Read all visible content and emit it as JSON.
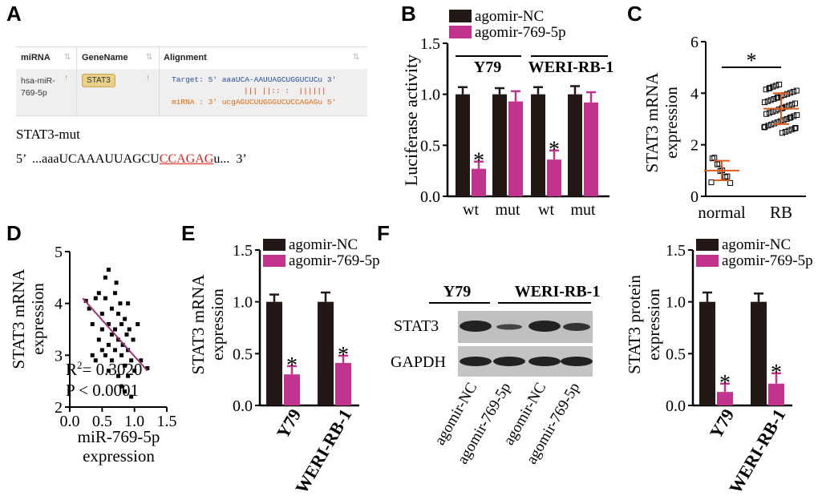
{
  "panels": {
    "a": "A",
    "b": "B",
    "c": "C",
    "d": "D",
    "e": "E",
    "f": "F"
  },
  "panel_a": {
    "headers": [
      "miRNA",
      "GeneName",
      "Alignment"
    ],
    "mirna_line1": "hsa-miR-",
    "mirna_line2": "769-5p",
    "gene": "STAT3",
    "target_line": "Target: 5' aaaUCA-AAUUAGCUGGUCUCu 3'",
    "pairing_line": "||| ||:: :  ||||||",
    "mirna_seq_line": "miRNA : 3' ucgAGUCUUGGGUCUCCAGAGu 5'",
    "mut_label": "STAT3-mut",
    "mut_prefix": "5’  ...aaaUCAAAUUAGCU",
    "mut_highlight": "CCAGAG",
    "mut_suffix": "u...  3’"
  },
  "colors": {
    "nc": "#231815",
    "ago": "#c2338e",
    "regression": "#a0307a",
    "orange": "#e05a1a"
  },
  "chart_data": [
    {
      "id": "B",
      "type": "bar",
      "ylabel": "Luciferase activity",
      "ylim": [
        0,
        1.5
      ],
      "yticks": [
        "0.0",
        "0.5",
        "1.0",
        "1.5"
      ],
      "groups": [
        "Y79",
        "WERI-RB-1"
      ],
      "categories": [
        "wt",
        "mut",
        "wt",
        "mut"
      ],
      "legend": [
        "agomir-NC",
        "agomir-769-5p"
      ],
      "series": [
        {
          "name": "agomir-NC",
          "values": [
            1.0,
            1.0,
            1.0,
            1.0
          ],
          "errors": [
            0.07,
            0.06,
            0.07,
            0.08
          ]
        },
        {
          "name": "agomir-769-5p",
          "values": [
            0.27,
            0.93,
            0.36,
            0.92
          ],
          "errors": [
            0.07,
            0.1,
            0.09,
            0.1
          ]
        }
      ],
      "annotations": [
        "*",
        "*"
      ]
    },
    {
      "id": "C",
      "type": "scatter",
      "ylabel_lines": [
        "STAT3 mRNA",
        "expression"
      ],
      "ylim": [
        0,
        6
      ],
      "yticks": [
        "0",
        "2",
        "4",
        "6"
      ],
      "categories": [
        "normal",
        "RB"
      ],
      "means": [
        1.0,
        3.4
      ],
      "sd": [
        0.38,
        0.6
      ],
      "annotation": "*"
    },
    {
      "id": "D",
      "type": "scatter",
      "ylabel_lines": [
        "STAT3 mRNA",
        "expression"
      ],
      "xlabel_lines": [
        "miR-769-5p",
        "expression"
      ],
      "xlim": [
        0.0,
        1.5
      ],
      "ylim": [
        2,
        5
      ],
      "xticks": [
        "0.0",
        "0.5",
        "1.0",
        "1.5"
      ],
      "yticks": [
        "2",
        "3",
        "4",
        "5"
      ],
      "r2_label": "R",
      "r2_value": "= 0.3020",
      "p_label": "P < 0.0001",
      "fit": {
        "x0": 0.2,
        "y0": 4.1,
        "x1": 1.2,
        "y1": 2.7
      },
      "points": [
        [
          0.25,
          4.05
        ],
        [
          0.3,
          3.9
        ],
        [
          0.35,
          3.6
        ],
        [
          0.4,
          4.1
        ],
        [
          0.45,
          3.3
        ],
        [
          0.45,
          4.2
        ],
        [
          0.5,
          3.1
        ],
        [
          0.5,
          3.8
        ],
        [
          0.55,
          4.5
        ],
        [
          0.55,
          3.0
        ],
        [
          0.55,
          4.1
        ],
        [
          0.6,
          3.6
        ],
        [
          0.6,
          3.2
        ],
        [
          0.6,
          4.65
        ],
        [
          0.65,
          3.9
        ],
        [
          0.65,
          3.4
        ],
        [
          0.65,
          2.9
        ],
        [
          0.7,
          4.2
        ],
        [
          0.7,
          3.5
        ],
        [
          0.7,
          3.1
        ],
        [
          0.72,
          4.4
        ],
        [
          0.75,
          3.8
        ],
        [
          0.75,
          3.3
        ],
        [
          0.75,
          2.6
        ],
        [
          0.78,
          4.0
        ],
        [
          0.8,
          3.6
        ],
        [
          0.8,
          3.0
        ],
        [
          0.8,
          2.4
        ],
        [
          0.82,
          3.2
        ],
        [
          0.85,
          3.7
        ],
        [
          0.85,
          2.8
        ],
        [
          0.85,
          2.3
        ],
        [
          0.88,
          3.4
        ],
        [
          0.9,
          3.1
        ],
        [
          0.9,
          2.6
        ],
        [
          0.9,
          4.0
        ],
        [
          0.92,
          3.5
        ],
        [
          0.95,
          2.9
        ],
        [
          0.95,
          2.2
        ],
        [
          0.98,
          3.3
        ],
        [
          1.0,
          2.7
        ],
        [
          1.05,
          3.6
        ],
        [
          1.1,
          2.9
        ],
        [
          1.2,
          2.75
        ],
        [
          0.35,
          3.0
        ],
        [
          0.4,
          2.9
        ],
        [
          0.5,
          3.5
        ],
        [
          0.6,
          2.7
        ]
      ]
    },
    {
      "id": "E",
      "type": "bar",
      "ylabel_lines": [
        "STAT3 mRNA",
        "expression"
      ],
      "ylim": [
        0,
        1.5
      ],
      "yticks": [
        "0.0",
        "0.5",
        "1.0",
        "1.5"
      ],
      "categories": [
        "Y79",
        "WERI-RB-1"
      ],
      "legend": [
        "agomir-NC",
        "agomir-769-5p"
      ],
      "series": [
        {
          "name": "agomir-NC",
          "values": [
            1.0,
            1.0
          ],
          "errors": [
            0.07,
            0.09
          ]
        },
        {
          "name": "agomir-769-5p",
          "values": [
            0.3,
            0.41
          ],
          "errors": [
            0.08,
            0.07
          ]
        }
      ],
      "annotations": [
        "*",
        "*"
      ]
    },
    {
      "id": "F",
      "type": "bar",
      "ylabel_lines": [
        "STAT3 protein",
        "expression"
      ],
      "ylim": [
        0,
        1.5
      ],
      "yticks": [
        "0.0",
        "0.5",
        "1.0",
        "1.5"
      ],
      "categories": [
        "Y79",
        "WERI-RB-1"
      ],
      "legend": [
        "agomir-NC",
        "agomir-769-5p"
      ],
      "series": [
        {
          "name": "agomir-NC",
          "values": [
            1.0,
            1.0
          ],
          "errors": [
            0.09,
            0.08
          ]
        },
        {
          "name": "agomir-769-5p",
          "values": [
            0.13,
            0.21
          ],
          "errors": [
            0.08,
            0.1
          ]
        }
      ],
      "annotations": [
        "*",
        "*"
      ]
    }
  ],
  "blot": {
    "groups": [
      "Y79",
      "WERI-RB-1"
    ],
    "rows": [
      "STAT3",
      "GAPDH"
    ],
    "lanes": [
      "agomir-NC",
      "agomir-769-5p",
      "agomir-NC",
      "agomir-769-5p"
    ]
  }
}
